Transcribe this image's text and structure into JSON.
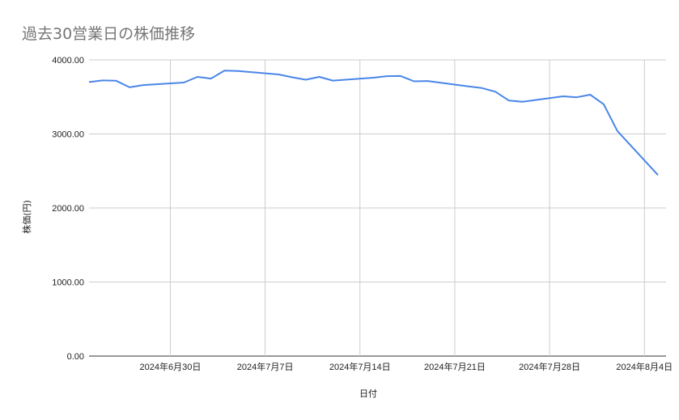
{
  "chart_data": {
    "type": "line",
    "title": "過去30営業日の株価推移",
    "xlabel": "日付",
    "ylabel": "株価(円)",
    "ylim": [
      0,
      4000
    ],
    "xlim": [
      "2024-06-24",
      "2024-08-05"
    ],
    "yticks": [
      0,
      1000,
      2000,
      3000,
      4000
    ],
    "ytick_labels": [
      "0.00",
      "1000.00",
      "2000.00",
      "3000.00",
      "4000.00"
    ],
    "xticks": [
      "2024-06-30",
      "2024-07-07",
      "2024-07-14",
      "2024-07-21",
      "2024-07-28",
      "2024-08-04"
    ],
    "xtick_labels": [
      "2024年6月30日",
      "2024年7月7日",
      "2024年7月14日",
      "2024年7月21日",
      "2024年7月28日",
      "2024年8月4日"
    ],
    "grid": true,
    "line_color": "#4a86e8",
    "x": [
      "2024-06-24",
      "2024-06-25",
      "2024-06-26",
      "2024-06-27",
      "2024-06-28",
      "2024-07-01",
      "2024-07-02",
      "2024-07-03",
      "2024-07-04",
      "2024-07-05",
      "2024-07-08",
      "2024-07-09",
      "2024-07-10",
      "2024-07-11",
      "2024-07-12",
      "2024-07-15",
      "2024-07-16",
      "2024-07-17",
      "2024-07-18",
      "2024-07-19",
      "2024-07-22",
      "2024-07-23",
      "2024-07-24",
      "2024-07-25",
      "2024-07-26",
      "2024-07-29",
      "2024-07-30",
      "2024-07-31",
      "2024-08-01",
      "2024-08-02",
      "2024-08-05"
    ],
    "values": [
      3700,
      3722,
      3718,
      3630,
      3660,
      3694,
      3770,
      3748,
      3855,
      3850,
      3803,
      3765,
      3732,
      3770,
      3720,
      3760,
      3780,
      3782,
      3710,
      3715,
      3643,
      3620,
      3570,
      3450,
      3435,
      3508,
      3495,
      3530,
      3400,
      3040,
      2445
    ]
  }
}
